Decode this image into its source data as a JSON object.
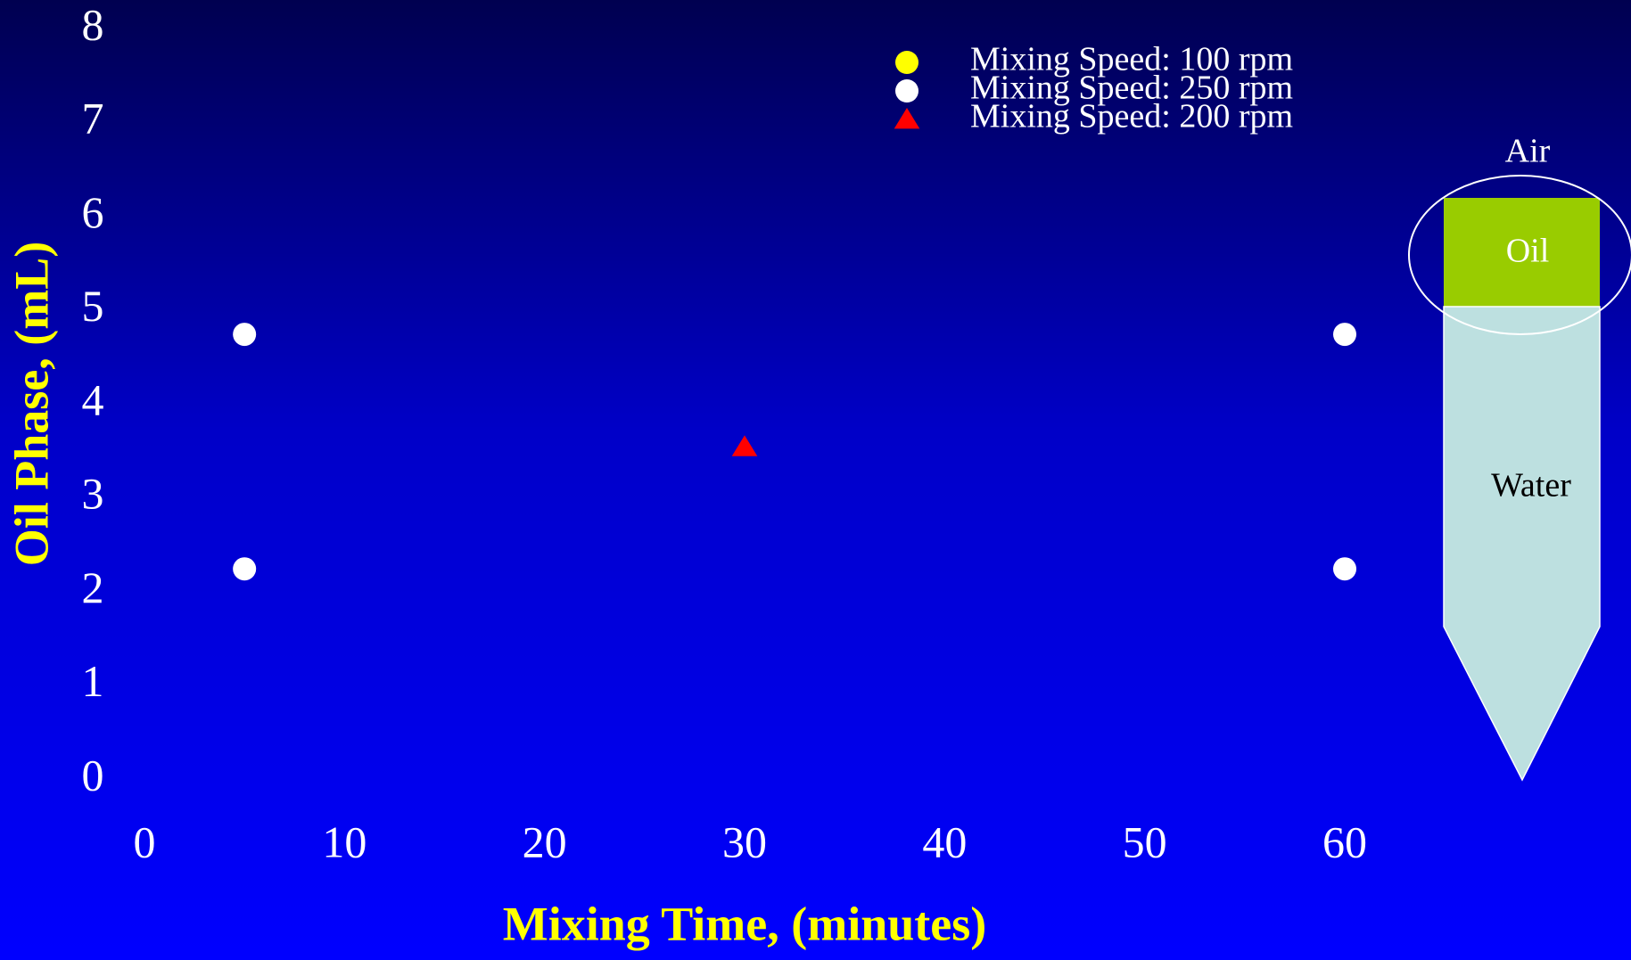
{
  "chart_data": {
    "type": "scatter",
    "x_label": "Mixing Time, (minutes)",
    "y_label": "Oil Phase, (mL)",
    "xlim": [
      0,
      60
    ],
    "xticks": [
      0,
      10,
      20,
      30,
      40,
      50,
      60
    ],
    "ylim": [
      0,
      8
    ],
    "yticks": [
      0,
      1,
      2,
      3,
      4,
      5,
      6,
      7,
      8
    ],
    "series": [
      {
        "name": "Mixing Speed: 100 rpm",
        "color": "#ffff00",
        "marker": "circle",
        "x": [],
        "values": []
      },
      {
        "name": "Mixing Speed: 250 rpm",
        "color": "#ffffff",
        "marker": "circle",
        "x": [
          5,
          5,
          60,
          60
        ],
        "values": [
          4.75,
          2.25,
          4.75,
          2.25
        ]
      },
      {
        "name": "Mixing Speed: 200 rpm",
        "color": "#ff0000",
        "marker": "triangle",
        "x": [
          30
        ],
        "values": [
          3.55
        ]
      }
    ]
  },
  "diagram": {
    "labels": [
      "Air",
      "Oil",
      "Water"
    ]
  }
}
